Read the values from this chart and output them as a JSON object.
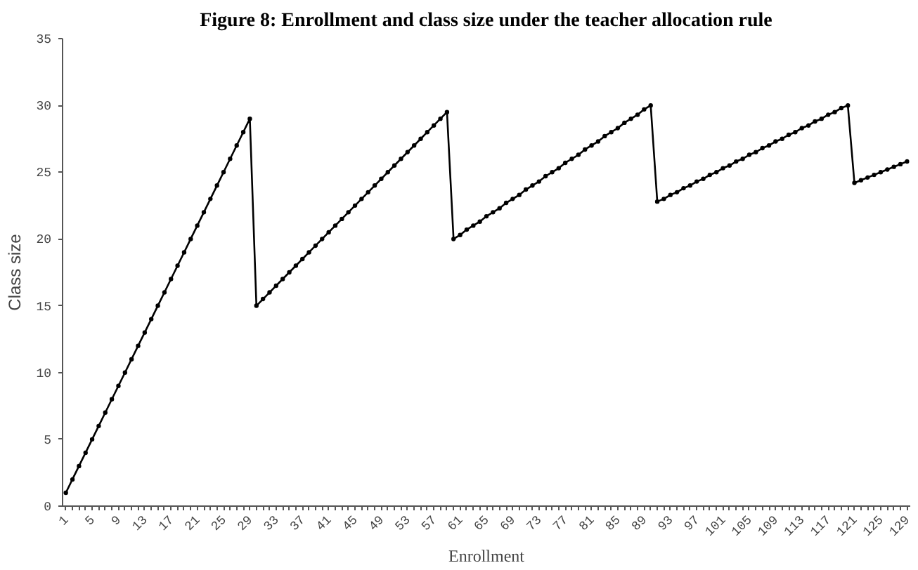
{
  "chart_data": {
    "type": "line",
    "title": "Figure 8: Enrollment and class size under the teacher allocation rule",
    "xlabel": "Enrollment",
    "ylabel": "Class size",
    "categories": [
      "1",
      null,
      null,
      null,
      "5",
      null,
      null,
      null,
      "9",
      null,
      null,
      null,
      "13",
      null,
      null,
      null,
      "17",
      null,
      null,
      null,
      "21",
      null,
      null,
      null,
      "25",
      null,
      null,
      null,
      "29",
      null,
      null,
      null,
      "33",
      null,
      null,
      null,
      "37",
      null,
      null,
      null,
      "41",
      null,
      null,
      null,
      "45",
      null,
      null,
      null,
      "49",
      null,
      null,
      null,
      "53",
      null,
      null,
      null,
      "57",
      null,
      null,
      null,
      "61",
      null,
      null,
      null,
      "65",
      null,
      null,
      null,
      "69",
      null,
      null,
      null,
      "73",
      null,
      null,
      null,
      "77",
      null,
      null,
      null,
      "81",
      null,
      null,
      null,
      "85",
      null,
      null,
      null,
      "89",
      null,
      null,
      null,
      "93",
      null,
      null,
      null,
      "97",
      null,
      null,
      null,
      "101",
      null,
      null,
      null,
      "105",
      null,
      null,
      null,
      "109",
      null,
      null,
      null,
      "113",
      null,
      null,
      null,
      "117",
      null,
      null,
      null,
      "121",
      null,
      null,
      null,
      "125",
      null,
      null,
      null,
      "129"
    ],
    "values": [
      1,
      2,
      3,
      4,
      5,
      6,
      7,
      8,
      9,
      10,
      11,
      12,
      13,
      14,
      15,
      16,
      17,
      18,
      19,
      20,
      21,
      22,
      23,
      24,
      25,
      26,
      27,
      28,
      29,
      15,
      15.5,
      16,
      16.5,
      17,
      17.5,
      18,
      18.5,
      19,
      19.5,
      20,
      20.5,
      21,
      21.5,
      22,
      22.5,
      23,
      23.5,
      24,
      24.5,
      25,
      25.5,
      26,
      26.5,
      27,
      27.5,
      28,
      28.5,
      29,
      29.5,
      20,
      20.3,
      20.7,
      21,
      21.3,
      21.7,
      22,
      22.3,
      22.7,
      23,
      23.3,
      23.7,
      24,
      24.3,
      24.7,
      25,
      25.3,
      25.7,
      26,
      26.3,
      26.7,
      27,
      27.3,
      27.7,
      28,
      28.3,
      28.7,
      29,
      29.3,
      29.7,
      30,
      22.8,
      23,
      23.3,
      23.5,
      23.8,
      24,
      24.3,
      24.5,
      24.8,
      25,
      25.3,
      25.5,
      25.8,
      26,
      26.3,
      26.5,
      26.8,
      27,
      27.3,
      27.5,
      27.8,
      28,
      28.3,
      28.5,
      28.8,
      29,
      29.3,
      29.5,
      29.8,
      30,
      24.2,
      24.4,
      24.6,
      24.8,
      25,
      25.2,
      25.4,
      25.6,
      25.8
    ],
    "color": "#000000",
    "ylim": [
      0,
      35
    ],
    "yticks": [
      0,
      5,
      10,
      15,
      20,
      25,
      30,
      35
    ],
    "marker": "circle",
    "line_style": "solid"
  }
}
